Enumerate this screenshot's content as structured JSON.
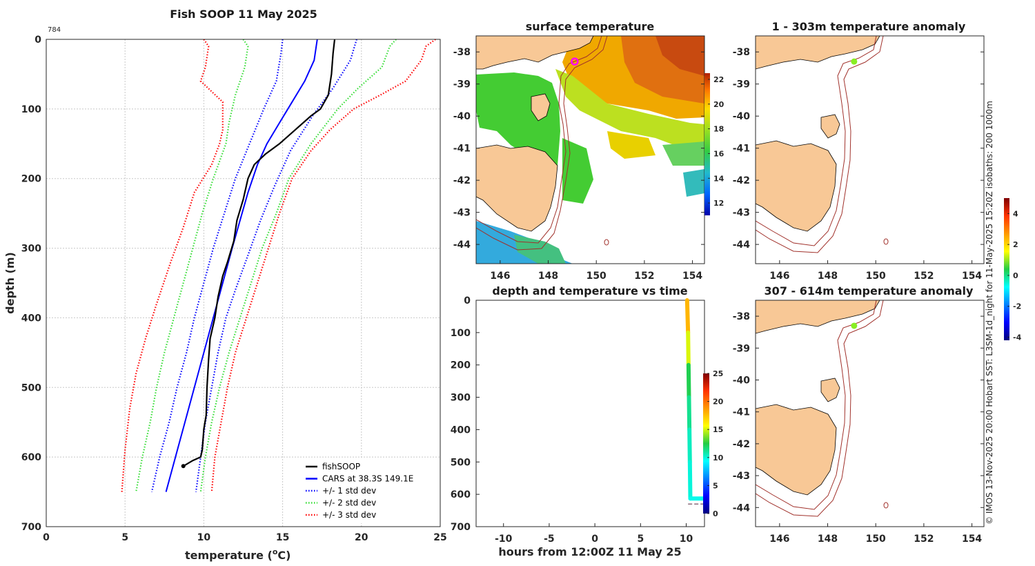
{
  "colors": {
    "fish": "#000000",
    "cars": "#0000ff",
    "std1": "#0000ff",
    "std2": "#33dd33",
    "std3": "#ff0000",
    "land": "#f8c896",
    "isobath": "#a0302a",
    "marker_magenta": "#ff00ff",
    "marker_green": "#88ee22"
  },
  "profile_panel": {
    "title": "Fish SOOP 11 May 2025",
    "corner_number": "784",
    "xlabel": "temperature (",
    "xlabel_sup": "o",
    "xlabel_end": "C)",
    "ylabel": "depth (m)"
  },
  "chart_data": [
    {
      "type": "line",
      "title": "Fish SOOP 11 May 2025",
      "xlabel": "temperature (oC)",
      "ylabel": "depth (m)",
      "xlim": [
        0,
        25
      ],
      "ylim": [
        700,
        0
      ],
      "xticks": [
        "0",
        "5",
        "10",
        "15",
        "20",
        "25"
      ],
      "yticks": [
        "0",
        "100",
        "200",
        "300",
        "400",
        "500",
        "600",
        "700"
      ],
      "legend": [
        "fishSOOP",
        "CARS at 38.3S 149.1E",
        "+/- 1 std dev",
        "+/- 2 std dev",
        "+/- 3 std dev"
      ],
      "legend_position": "bottom-right",
      "fish": [
        [
          18.3,
          0
        ],
        [
          18.2,
          20
        ],
        [
          18.1,
          50
        ],
        [
          17.9,
          80
        ],
        [
          17.4,
          100
        ],
        [
          16.8,
          110
        ],
        [
          15.8,
          130
        ],
        [
          14.8,
          150
        ],
        [
          13.9,
          165
        ],
        [
          13.2,
          180
        ],
        [
          12.8,
          200
        ],
        [
          12.5,
          230
        ],
        [
          12.1,
          260
        ],
        [
          11.9,
          290
        ],
        [
          11.5,
          320
        ],
        [
          11.2,
          340
        ],
        [
          10.9,
          370
        ],
        [
          10.7,
          400
        ],
        [
          10.4,
          430
        ],
        [
          10.3,
          460
        ],
        [
          10.2,
          500
        ],
        [
          10.15,
          540
        ],
        [
          10.0,
          560
        ],
        [
          9.9,
          590
        ],
        [
          9.8,
          600
        ],
        [
          9.3,
          605
        ],
        [
          8.7,
          613
        ]
      ],
      "cars": [
        [
          17.2,
          0
        ],
        [
          17.0,
          30
        ],
        [
          16.4,
          60
        ],
        [
          15.6,
          90
        ],
        [
          14.8,
          120
        ],
        [
          14.0,
          150
        ],
        [
          13.4,
          180
        ],
        [
          12.8,
          220
        ],
        [
          12.3,
          260
        ],
        [
          11.8,
          300
        ],
        [
          11.2,
          350
        ],
        [
          10.6,
          400
        ],
        [
          10.0,
          450
        ],
        [
          9.4,
          500
        ],
        [
          8.8,
          550
        ],
        [
          8.2,
          600
        ],
        [
          7.6,
          650
        ]
      ],
      "std1_low": [
        [
          15.0,
          0
        ],
        [
          14.9,
          20
        ],
        [
          14.6,
          60
        ],
        [
          13.8,
          100
        ],
        [
          12.9,
          150
        ],
        [
          12.0,
          200
        ],
        [
          11.3,
          250
        ],
        [
          10.6,
          300
        ],
        [
          10.0,
          350
        ],
        [
          9.4,
          400
        ],
        [
          8.9,
          450
        ],
        [
          8.3,
          500
        ],
        [
          7.8,
          550
        ],
        [
          7.2,
          600
        ],
        [
          6.7,
          650
        ]
      ],
      "std1_high": [
        [
          19.7,
          0
        ],
        [
          19.3,
          30
        ],
        [
          18.2,
          70
        ],
        [
          16.9,
          110
        ],
        [
          15.5,
          160
        ],
        [
          14.5,
          210
        ],
        [
          13.6,
          260
        ],
        [
          12.8,
          310
        ],
        [
          12.0,
          360
        ],
        [
          11.4,
          400
        ],
        [
          10.9,
          450
        ],
        [
          10.5,
          500
        ],
        [
          10.1,
          550
        ],
        [
          9.8,
          600
        ],
        [
          9.5,
          650
        ]
      ],
      "std2_low": [
        [
          12.5,
          0
        ],
        [
          12.8,
          10
        ],
        [
          12.6,
          40
        ],
        [
          12.0,
          80
        ],
        [
          11.6,
          120
        ],
        [
          11.4,
          150
        ],
        [
          10.6,
          200
        ],
        [
          9.9,
          250
        ],
        [
          9.3,
          300
        ],
        [
          8.7,
          350
        ],
        [
          8.1,
          400
        ],
        [
          7.5,
          450
        ],
        [
          7.0,
          500
        ],
        [
          6.6,
          550
        ],
        [
          6.1,
          600
        ],
        [
          5.7,
          650
        ]
      ],
      "std2_high": [
        [
          22.2,
          0
        ],
        [
          21.8,
          10
        ],
        [
          21.3,
          40
        ],
        [
          19.8,
          70
        ],
        [
          18.5,
          100
        ],
        [
          16.8,
          150
        ],
        [
          15.4,
          200
        ],
        [
          14.6,
          250
        ],
        [
          13.7,
          300
        ],
        [
          13.0,
          350
        ],
        [
          12.3,
          400
        ],
        [
          11.6,
          450
        ],
        [
          11.0,
          500
        ],
        [
          10.5,
          550
        ],
        [
          10.1,
          600
        ],
        [
          9.8,
          650
        ]
      ],
      "std3_low": [
        [
          10.0,
          0
        ],
        [
          10.3,
          10
        ],
        [
          10.1,
          40
        ],
        [
          9.8,
          60
        ],
        [
          11.2,
          90
        ],
        [
          11.2,
          130
        ],
        [
          11.0,
          150
        ],
        [
          10.5,
          180
        ],
        [
          9.4,
          220
        ],
        [
          8.7,
          270
        ],
        [
          7.9,
          320
        ],
        [
          7.0,
          380
        ],
        [
          6.3,
          430
        ],
        [
          5.7,
          480
        ],
        [
          5.3,
          530
        ],
        [
          5.0,
          590
        ],
        [
          4.8,
          650
        ]
      ],
      "std3_high": [
        [
          24.7,
          0
        ],
        [
          24.1,
          10
        ],
        [
          23.8,
          30
        ],
        [
          22.8,
          60
        ],
        [
          21.2,
          80
        ],
        [
          19.5,
          100
        ],
        [
          18.0,
          130
        ],
        [
          16.8,
          160
        ],
        [
          15.6,
          200
        ],
        [
          14.8,
          250
        ],
        [
          14.1,
          300
        ],
        [
          13.4,
          350
        ],
        [
          12.7,
          400
        ],
        [
          12.0,
          450
        ],
        [
          11.5,
          500
        ],
        [
          11.1,
          550
        ],
        [
          10.7,
          600
        ],
        [
          10.5,
          650
        ]
      ]
    },
    {
      "type": "heatmap",
      "title": "surface temperature",
      "xlim": [
        145,
        154.5
      ],
      "ylim": [
        -44.6,
        -37.5
      ],
      "xticks": [
        "146",
        "148",
        "150",
        "152",
        "154"
      ],
      "yticks": [
        "-38",
        "-39",
        "-40",
        "-41",
        "-42",
        "-43",
        "-44"
      ],
      "colorbar": {
        "min": 11,
        "max": 22.5,
        "ticks": [
          "12",
          "14",
          "16",
          "18",
          "20",
          "22"
        ]
      },
      "station": [
        149.1,
        -38.3
      ]
    },
    {
      "type": "scatter",
      "title": "depth and temperature vs time",
      "xlabel": "hours from 12:00Z 11 May 25",
      "xlim": [
        -13,
        12
      ],
      "ylim": [
        700,
        0
      ],
      "xticks": [
        "-10",
        "-5",
        "0",
        "5",
        "10"
      ],
      "yticks": [
        "0",
        "100",
        "200",
        "300",
        "400",
        "500",
        "600",
        "700"
      ],
      "colorbar": {
        "min": 0,
        "max": 25,
        "ticks": [
          "0",
          "5",
          "10",
          "15",
          "20",
          "25"
        ]
      },
      "track": [
        {
          "hours": 10.1,
          "depth": 0,
          "temp": 18.3
        },
        {
          "hours": 10.2,
          "depth": 100,
          "temp": 17.4
        },
        {
          "hours": 10.25,
          "depth": 200,
          "temp": 12.8
        },
        {
          "hours": 10.3,
          "depth": 300,
          "temp": 11.8
        },
        {
          "hours": 10.35,
          "depth": 400,
          "temp": 10.7
        },
        {
          "hours": 10.4,
          "depth": 500,
          "temp": 10.2
        },
        {
          "hours": 10.45,
          "depth": 613,
          "temp": 9.8
        },
        {
          "hours": 12.0,
          "depth": 613,
          "temp": 9.6
        }
      ],
      "bottom_marker_depth": 630
    },
    {
      "type": "scatter",
      "title": "1 - 303m temperature anomaly",
      "xlim": [
        145,
        154.5
      ],
      "ylim": [
        -44.6,
        -37.5
      ],
      "xticks": [
        "146",
        "148",
        "150",
        "152",
        "154"
      ],
      "yticks": [
        "-38",
        "-39",
        "-40",
        "-41",
        "-42",
        "-43",
        "-44"
      ],
      "station": [
        149.1,
        -38.3
      ],
      "anomaly": 0.6
    },
    {
      "type": "scatter",
      "title": "307 - 614m temperature anomaly",
      "xlim": [
        145,
        154.5
      ],
      "ylim": [
        -44.6,
        -37.5
      ],
      "xticks": [
        "146",
        "148",
        "150",
        "152",
        "154"
      ],
      "yticks": [
        "-38",
        "-39",
        "-40",
        "-41",
        "-42",
        "-43",
        "-44"
      ],
      "station": [
        149.1,
        -38.3
      ],
      "anomaly": 0.5
    }
  ],
  "anomaly_colorbar": {
    "min": -4.2,
    "max": 5,
    "ticks": [
      "-4",
      "-2",
      "0",
      "2",
      "4"
    ]
  },
  "credit": "© IMOS 13-Nov-2025 20:00 Hobart SST: L3SM-1d_night for 11-May-2025 15:20Z isobaths: 200 1000m"
}
